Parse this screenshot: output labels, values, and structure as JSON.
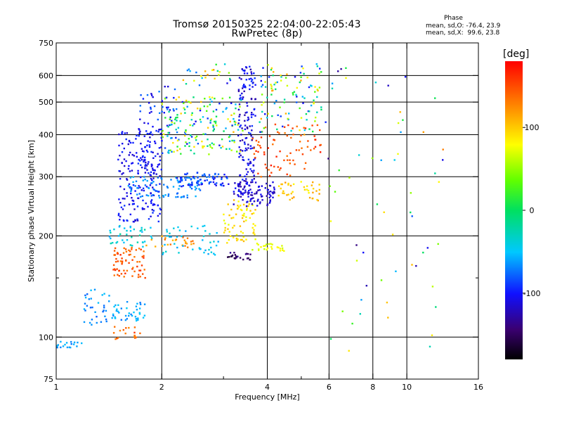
{
  "chart_data": {
    "type": "scatter",
    "title": "Tromsø 20150325 22:04:00-22:05:43",
    "subtitle": "RwPretec (8p)",
    "stats": {
      "header": "Phase",
      "o_line": "mean, sd,O: -76.4, 23.9",
      "x_line": "mean, sd,X:  99.6, 23.8"
    },
    "xlabel": "Frequency [MHz]",
    "ylabel": "Stationary phase Virtual Height [km]",
    "x_scale": "log",
    "y_scale": "log",
    "xlim": [
      1,
      16
    ],
    "ylim": [
      75,
      750
    ],
    "x_ticks": [
      1,
      2,
      4,
      6,
      8,
      10,
      16
    ],
    "x_minor_ticks": [
      3,
      5
    ],
    "y_ticks": [
      75,
      100,
      200,
      300,
      400,
      500,
      600,
      750
    ],
    "y_minor_ticks": [
      150
    ],
    "grid": true,
    "colorbar": {
      "label": "[deg]",
      "range": [
        -180,
        180
      ],
      "ticks": [
        -100,
        0,
        100
      ],
      "colormap": "rainbow"
    },
    "clusters": [
      {
        "f": [
          1.0,
          1.2
        ],
        "h": [
          93,
          97
        ],
        "phase": [
          -75,
          -50
        ],
        "n": 18
      },
      {
        "f": [
          1.2,
          1.45
        ],
        "h": [
          108,
          140
        ],
        "phase": [
          -80,
          -50
        ],
        "n": 35
      },
      {
        "f": [
          1.45,
          1.8
        ],
        "h": [
          112,
          128
        ],
        "phase": [
          -75,
          -45
        ],
        "n": 40
      },
      {
        "f": [
          1.45,
          1.75
        ],
        "h": [
          98,
          108
        ],
        "phase": [
          125,
          160
        ],
        "n": 18
      },
      {
        "f": [
          1.45,
          1.8
        ],
        "h": [
          150,
          185
        ],
        "phase": [
          130,
          165
        ],
        "n": 70
      },
      {
        "f": [
          1.4,
          1.9
        ],
        "h": [
          185,
          215
        ],
        "phase": [
          -60,
          -20
        ],
        "n": 40
      },
      {
        "f": [
          1.5,
          2.0
        ],
        "h": [
          220,
          420
        ],
        "phase": [
          -120,
          -90
        ],
        "n": 220
      },
      {
        "f": [
          1.6,
          2.6
        ],
        "h": [
          260,
          300
        ],
        "phase": [
          -80,
          -55
        ],
        "n": 90
      },
      {
        "f": [
          1.7,
          2.2
        ],
        "h": [
          400,
          560
        ],
        "phase": [
          -115,
          -70
        ],
        "n": 40
      },
      {
        "f": [
          1.8,
          2.5
        ],
        "h": [
          185,
          200
        ],
        "phase": [
          100,
          140
        ],
        "n": 25
      },
      {
        "f": [
          2.0,
          2.9
        ],
        "h": [
          175,
          215
        ],
        "phase": [
          -60,
          -35
        ],
        "n": 45
      },
      {
        "f": [
          2.2,
          3.1
        ],
        "h": [
          280,
          310
        ],
        "phase": [
          -110,
          -70
        ],
        "n": 70
      },
      {
        "f": [
          2.0,
          3.4
        ],
        "h": [
          350,
          520
        ],
        "phase": [
          -110,
          110
        ],
        "n": 180
      },
      {
        "f": [
          2.3,
          3.2
        ],
        "h": [
          560,
          650
        ],
        "phase": [
          -110,
          130
        ],
        "n": 25
      },
      {
        "f": [
          3.0,
          3.6
        ],
        "h": [
          170,
          180
        ],
        "phase": [
          -165,
          -130
        ],
        "n": 25
      },
      {
        "f": [
          3.0,
          3.7
        ],
        "h": [
          190,
          260
        ],
        "phase": [
          70,
          110
        ],
        "n": 70
      },
      {
        "f": [
          3.3,
          3.7
        ],
        "h": [
          260,
          640
        ],
        "phase": [
          -130,
          -90
        ],
        "n": 160
      },
      {
        "f": [
          3.2,
          4.2
        ],
        "h": [
          245,
          290
        ],
        "phase": [
          -130,
          -100
        ],
        "n": 80
      },
      {
        "f": [
          3.6,
          4.5
        ],
        "h": [
          180,
          190
        ],
        "phase": [
          60,
          85
        ],
        "n": 25
      },
      {
        "f": [
          3.6,
          5.7
        ],
        "h": [
          300,
          430
        ],
        "phase": [
          130,
          170
        ],
        "n": 80
      },
      {
        "f": [
          3.8,
          5.7
        ],
        "h": [
          400,
          650
        ],
        "phase": [
          -110,
          120
        ],
        "n": 110
      },
      {
        "f": [
          4.3,
          5.7
        ],
        "h": [
          255,
          290
        ],
        "phase": [
          80,
          120
        ],
        "n": 40
      },
      {
        "f": [
          5.8,
          13.0
        ],
        "h": [
          90,
          650
        ],
        "phase": [
          -140,
          130
        ],
        "n": 60
      }
    ]
  }
}
